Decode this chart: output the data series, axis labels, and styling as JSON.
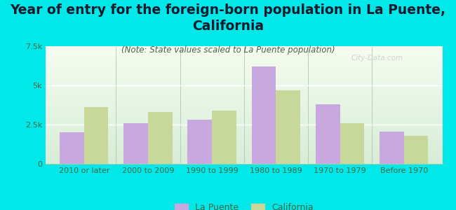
{
  "title": "Year of entry for the foreign-born population in La Puente,\nCalifornia",
  "subtitle": "(Note: State values scaled to La Puente population)",
  "categories": [
    "2010 or later",
    "2000 to 2009",
    "1990 to 1999",
    "1980 to 1989",
    "1970 to 1979",
    "Before 1970"
  ],
  "la_puente": [
    2000,
    2600,
    2800,
    6200,
    3800,
    2050
  ],
  "california": [
    3600,
    3300,
    3400,
    4700,
    2600,
    1800
  ],
  "la_puente_color": "#c9a8e0",
  "california_color": "#c8d89a",
  "background_color": "#00e8e8",
  "ylim": [
    0,
    7500
  ],
  "yticks": [
    0,
    2500,
    5000,
    7500
  ],
  "ytick_labels": [
    "0",
    "2.5k",
    "5k",
    "7.5k"
  ],
  "watermark": "City-Data.com",
  "bar_width": 0.38,
  "title_fontsize": 13.5,
  "subtitle_fontsize": 8.5,
  "tick_fontsize": 8,
  "legend_fontsize": 9,
  "title_color": "#1a1a2e",
  "subtitle_color": "#446644",
  "tick_color": "#446644",
  "plot_bg_top": "#f5fdf0",
  "plot_bg_bottom": "#d8edd8"
}
